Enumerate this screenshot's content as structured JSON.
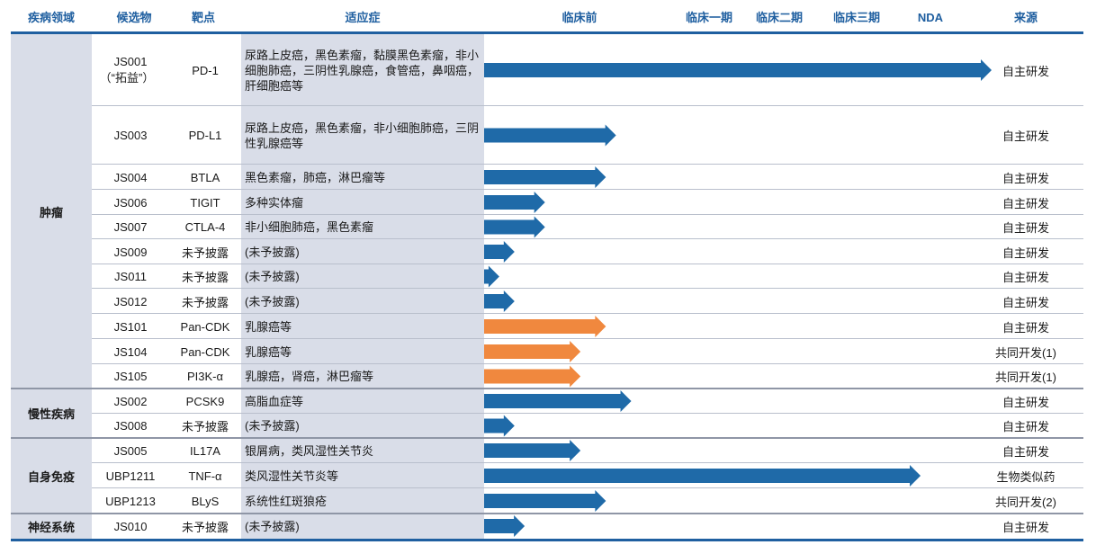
{
  "headers": {
    "disease": "疾病领域",
    "candidate": "候选物",
    "target": "靶点",
    "indication": "适应症",
    "preclinical": "临床前",
    "phase1": "临床一期",
    "phase2": "临床二期",
    "phase3": "临床三期",
    "nda": "NDA",
    "source": "来源"
  },
  "colors": {
    "header_text": "#1f5fa0",
    "proprietary_arrow": "#1f6aa8",
    "collaboration_arrow": "#f0883e",
    "shade": "#d9dde8"
  },
  "domains": [
    {
      "name": "肿瘤",
      "rows": 11
    },
    {
      "name": "慢性疾病",
      "rows": 2
    },
    {
      "name": "自身免疫",
      "rows": 3
    },
    {
      "name": "神经系统",
      "rows": 1
    }
  ],
  "chart_data": {
    "type": "bar",
    "orientation": "horizontal",
    "x_categories": [
      "临床前",
      "临床一期",
      "临床二期",
      "临床三期",
      "NDA"
    ],
    "xlim": [
      0,
      5
    ],
    "categories": [
      "JS001",
      "JS003",
      "JS004",
      "JS006",
      "JS007",
      "JS009",
      "JS011",
      "JS012",
      "JS101",
      "JS104",
      "JS105",
      "JS002",
      "JS008",
      "JS005",
      "UBP1211",
      "UBP1213",
      "JS010"
    ],
    "values": [
      5.0,
      1.3,
      1.2,
      0.6,
      0.6,
      0.3,
      0.15,
      0.3,
      1.2,
      0.95,
      0.95,
      1.45,
      0.3,
      0.95,
      4.3,
      1.2,
      0.4
    ],
    "rows": [
      {
        "candidate": "JS001",
        "alias": "（“拓益”）",
        "target": "PD-1",
        "indication": "尿路上皮癌，黑色素瘤，黏膜黑色素瘤，非小细胞肺癌，三阴性乳腺癌，食管癌，鼻咽癌，肝细胞癌等",
        "progress": 5.0,
        "color": "#1f6aa8",
        "source": "自主研发"
      },
      {
        "candidate": "JS003",
        "target": "PD-L1",
        "indication": "尿路上皮癌，黑色素瘤，非小细胞肺癌，三阴性乳腺癌等",
        "progress": 1.3,
        "color": "#1f6aa8",
        "source": "自主研发"
      },
      {
        "candidate": "JS004",
        "target": "BTLA",
        "indication": "黑色素瘤，肺癌，淋巴瘤等",
        "progress": 1.2,
        "color": "#1f6aa8",
        "source": "自主研发"
      },
      {
        "candidate": "JS006",
        "target": "TIGIT",
        "indication": "多种实体瘤",
        "progress": 0.6,
        "color": "#1f6aa8",
        "source": "自主研发"
      },
      {
        "candidate": "JS007",
        "target": "CTLA-4",
        "indication": "非小细胞肺癌，黑色素瘤",
        "progress": 0.6,
        "color": "#1f6aa8",
        "source": "自主研发"
      },
      {
        "candidate": "JS009",
        "target": "未予披露",
        "indication": "(未予披露)",
        "progress": 0.3,
        "color": "#1f6aa8",
        "source": "自主研发"
      },
      {
        "candidate": "JS011",
        "target": "未予披露",
        "indication": "(未予披露)",
        "progress": 0.15,
        "color": "#1f6aa8",
        "source": "自主研发"
      },
      {
        "candidate": "JS012",
        "target": "未予披露",
        "indication": "(未予披露)",
        "progress": 0.3,
        "color": "#1f6aa8",
        "source": "自主研发"
      },
      {
        "candidate": "JS101",
        "target": "Pan-CDK",
        "indication": "乳腺癌等",
        "progress": 1.2,
        "color": "#f0883e",
        "source": "自主研发"
      },
      {
        "candidate": "JS104",
        "target": "Pan-CDK",
        "indication": "乳腺癌等",
        "progress": 0.95,
        "color": "#f0883e",
        "source": "共同开发(1)"
      },
      {
        "candidate": "JS105",
        "target": "PI3K-α",
        "indication": "乳腺癌，肾癌，淋巴瘤等",
        "progress": 0.95,
        "color": "#f0883e",
        "source": "共同开发(1)"
      },
      {
        "candidate": "JS002",
        "target": "PCSK9",
        "indication": "高脂血症等",
        "progress": 1.45,
        "color": "#1f6aa8",
        "source": "自主研发"
      },
      {
        "candidate": "JS008",
        "target": "未予披露",
        "indication": "(未予披露)",
        "progress": 0.3,
        "color": "#1f6aa8",
        "source": "自主研发"
      },
      {
        "candidate": "JS005",
        "target": "IL17A",
        "indication": "银屑病，类风湿性关节炎",
        "progress": 0.95,
        "color": "#1f6aa8",
        "source": "自主研发"
      },
      {
        "candidate": "UBP1211",
        "target": "TNF-α",
        "indication": "类风湿性关节炎等",
        "progress": 4.3,
        "color": "#1f6aa8",
        "source": "生物类似药"
      },
      {
        "candidate": "UBP1213",
        "target": "BLyS",
        "indication": "系统性红斑狼疮",
        "progress": 1.2,
        "color": "#1f6aa8",
        "source": "共同开发(2)"
      },
      {
        "candidate": "JS010",
        "target": "未予披露",
        "indication": "(未予披露)",
        "progress": 0.4,
        "color": "#1f6aa8",
        "source": "自主研发"
      }
    ]
  }
}
